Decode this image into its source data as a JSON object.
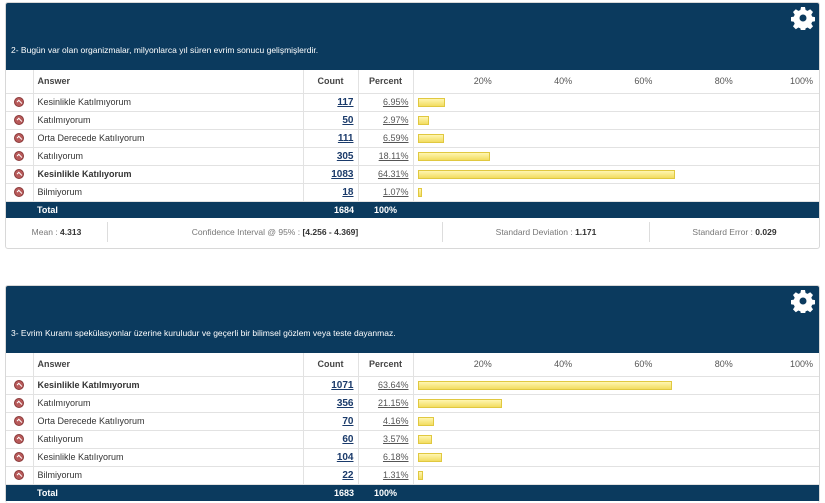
{
  "columns": {
    "answer": "Answer",
    "count": "Count",
    "percent": "Percent",
    "ticks": [
      "20%",
      "40%",
      "60%",
      "80%",
      "100%"
    ]
  },
  "questions": [
    {
      "title": "2- Bugün var olan organizmalar, milyonlarca yıl süren evrim sonucu gelişmişlerdir.",
      "rows": [
        {
          "answer": "Kesinlikle Katılmıyorum",
          "count": "117",
          "percent": "6.95%",
          "value": 6.95,
          "bold": false
        },
        {
          "answer": "Katılmıyorum",
          "count": "50",
          "percent": "2.97%",
          "value": 2.97,
          "bold": false
        },
        {
          "answer": "Orta Derecede Katılıyorum",
          "count": "111",
          "percent": "6.59%",
          "value": 6.59,
          "bold": false
        },
        {
          "answer": "Katılıyorum",
          "count": "305",
          "percent": "18.11%",
          "value": 18.11,
          "bold": false
        },
        {
          "answer": "Kesinlikle Katılıyorum",
          "count": "1083",
          "percent": "64.31%",
          "value": 64.31,
          "bold": true
        },
        {
          "answer": "Bilmiyorum",
          "count": "18",
          "percent": "1.07%",
          "value": 1.07,
          "bold": false
        }
      ],
      "total": {
        "label": "Total",
        "count": "1684",
        "percent": "100%"
      },
      "stats": {
        "mean_label": "Mean :",
        "mean": "4.313",
        "ci_label": "Confidence Interval @ 95% :",
        "ci": "[4.256 - 4.369]",
        "sd_label": "Standard Deviation :",
        "sd": "1.171",
        "se_label": "Standard Error :",
        "se": "0.029"
      }
    },
    {
      "title": "3- Evrim Kuramı spekülasyonlar üzerine kuruludur ve geçerli bir bilimsel gözlem veya teste dayanmaz.",
      "rows": [
        {
          "answer": "Kesinlikle Katılmıyorum",
          "count": "1071",
          "percent": "63.64%",
          "value": 63.64,
          "bold": true
        },
        {
          "answer": "Katılmıyorum",
          "count": "356",
          "percent": "21.15%",
          "value": 21.15,
          "bold": false
        },
        {
          "answer": "Orta Derecede Katılıyorum",
          "count": "70",
          "percent": "4.16%",
          "value": 4.16,
          "bold": false
        },
        {
          "answer": "Katılıyorum",
          "count": "60",
          "percent": "3.57%",
          "value": 3.57,
          "bold": false
        },
        {
          "answer": "Kesinlikle Katılıyorum",
          "count": "104",
          "percent": "6.18%",
          "value": 6.18,
          "bold": false
        },
        {
          "answer": "Bilmiyorum",
          "count": "22",
          "percent": "1.31%",
          "value": 1.31,
          "bold": false
        }
      ],
      "total": {
        "label": "Total",
        "count": "1683",
        "percent": "100%"
      }
    }
  ],
  "colors": {
    "header": "#0b3a5e",
    "bar": "#f2dc60"
  }
}
